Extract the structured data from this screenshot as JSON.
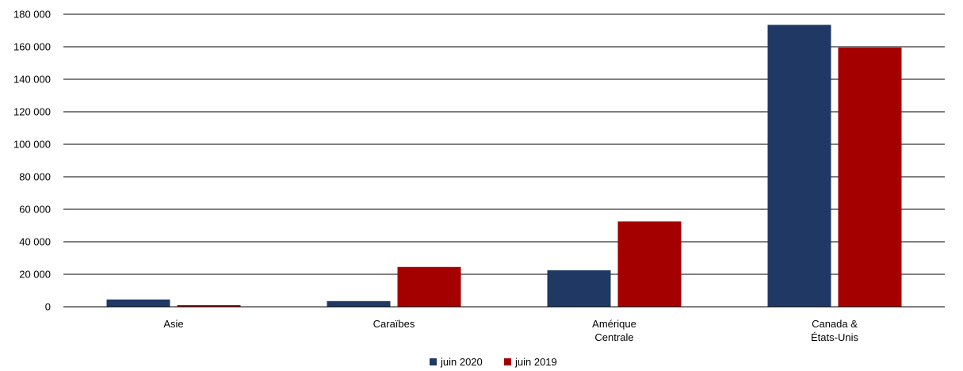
{
  "chart_data": {
    "type": "bar",
    "categories": [
      [
        "Asie"
      ],
      [
        "Caraïbes"
      ],
      [
        "Amérique",
        "Centrale"
      ],
      [
        "Canada &",
        "États-Unis"
      ]
    ],
    "series": [
      {
        "name": "juin 2020",
        "color": "#1F3864",
        "values": [
          4500,
          3500,
          22500,
          173500
        ]
      },
      {
        "name": "juin 2019",
        "color": "#A50000",
        "values": [
          1000,
          24500,
          52500,
          159500
        ]
      }
    ],
    "ylim": [
      0,
      180000
    ],
    "yticks": [
      0,
      20000,
      40000,
      60000,
      80000,
      100000,
      120000,
      140000,
      160000,
      180000
    ],
    "ytick_labels": [
      "0",
      "20 000",
      "40 000",
      "60 000",
      "80 000",
      "100 000",
      "120 000",
      "140 000",
      "160 000",
      "180 000"
    ],
    "grid": true,
    "legend_position": "bottom-center"
  }
}
